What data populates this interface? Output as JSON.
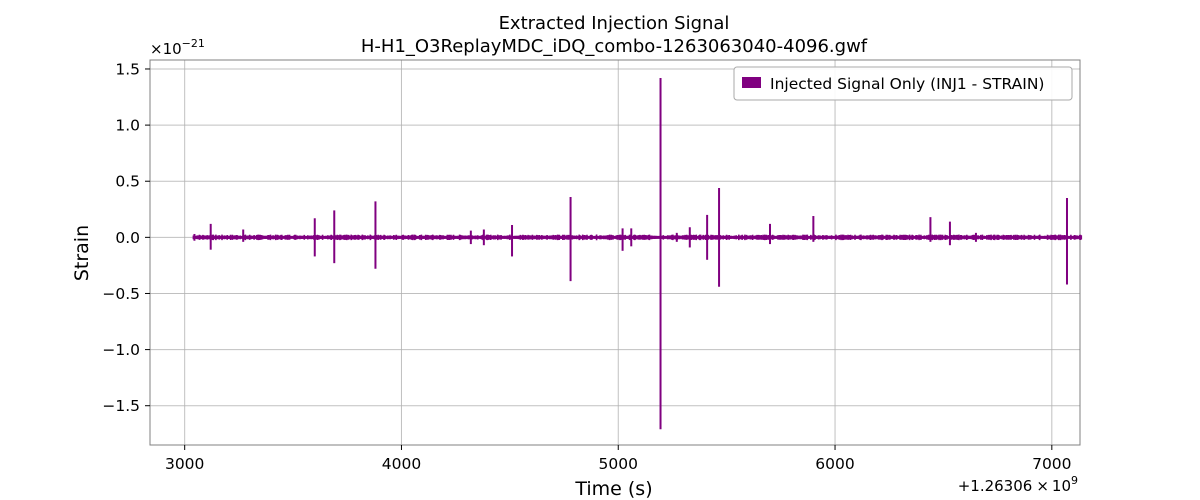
{
  "chart_data": {
    "type": "line",
    "title": "Extracted Injection Signal",
    "subtitle": "H-H1_O3ReplayMDC_iDQ_combo-1263063040-4096.gwf",
    "xlabel": "Time (s)",
    "ylabel": "Strain",
    "x_offset_label": "+1.26306",
    "x_offset_exp": "9",
    "y_multiplier_label": "×10",
    "y_multiplier_exp": "−21",
    "xlim": [
      2840,
      7130
    ],
    "ylim": [
      -1.85,
      1.58
    ],
    "x_ticks": [
      3000,
      4000,
      5000,
      6000,
      7000
    ],
    "x_tick_labels": [
      "3000",
      "4000",
      "5000",
      "6000",
      "7000"
    ],
    "y_ticks": [
      1.5,
      1.0,
      0.5,
      0.0,
      -0.5,
      -1.0,
      -1.5
    ],
    "y_tick_labels": [
      "1.5",
      "1.0",
      "0.5",
      "0.0",
      "−0.5",
      "−1.0",
      "−1.5"
    ],
    "grid": true,
    "legend_position": "top-right",
    "series": [
      {
        "name": "Injected Signal Only (INJ1 - STRAIN)",
        "color": "#800080",
        "x_range": [
          3040,
          7136
        ],
        "noise_band": 0.025,
        "spikes": [
          {
            "x": 3045,
            "max": 0.03,
            "min": -0.03
          },
          {
            "x": 3120,
            "max": 0.12,
            "min": -0.11
          },
          {
            "x": 3270,
            "max": 0.07,
            "min": -0.04
          },
          {
            "x": 3600,
            "max": 0.17,
            "min": -0.17
          },
          {
            "x": 3690,
            "max": 0.24,
            "min": -0.23
          },
          {
            "x": 3880,
            "max": 0.32,
            "min": -0.28
          },
          {
            "x": 4320,
            "max": 0.06,
            "min": -0.06
          },
          {
            "x": 4380,
            "max": 0.07,
            "min": -0.07
          },
          {
            "x": 4510,
            "max": 0.11,
            "min": -0.17
          },
          {
            "x": 4780,
            "max": 0.36,
            "min": -0.39
          },
          {
            "x": 5020,
            "max": 0.08,
            "min": -0.12
          },
          {
            "x": 5060,
            "max": 0.08,
            "min": -0.08
          },
          {
            "x": 5195,
            "max": 1.42,
            "min": -1.71
          },
          {
            "x": 5270,
            "max": 0.04,
            "min": -0.04
          },
          {
            "x": 5330,
            "max": 0.09,
            "min": -0.09
          },
          {
            "x": 5410,
            "max": 0.2,
            "min": -0.2
          },
          {
            "x": 5465,
            "max": 0.44,
            "min": -0.44
          },
          {
            "x": 5700,
            "max": 0.12,
            "min": -0.06
          },
          {
            "x": 5900,
            "max": 0.19,
            "min": -0.04
          },
          {
            "x": 6440,
            "max": 0.18,
            "min": -0.04
          },
          {
            "x": 6530,
            "max": 0.14,
            "min": -0.07
          },
          {
            "x": 6650,
            "max": 0.04,
            "min": -0.04
          },
          {
            "x": 7070,
            "max": 0.35,
            "min": -0.42
          }
        ]
      }
    ]
  }
}
